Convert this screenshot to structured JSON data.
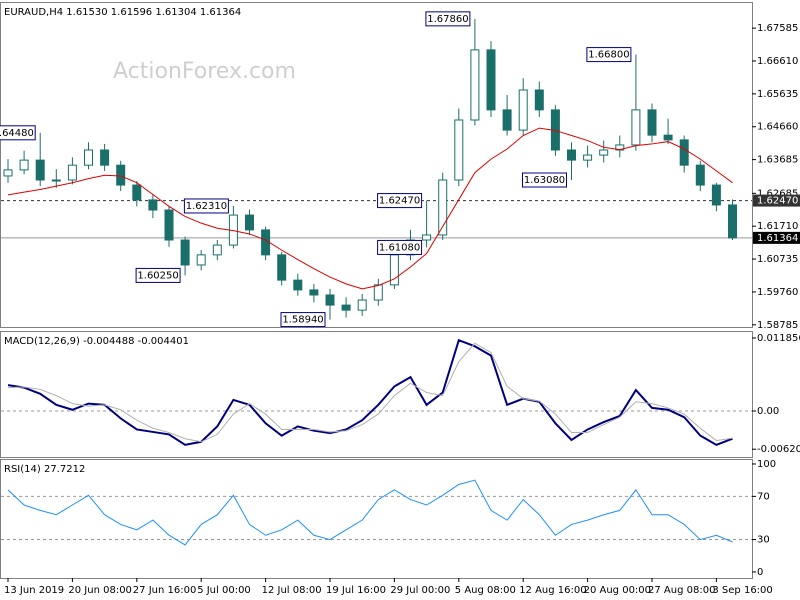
{
  "chart_data": [
    {
      "type": "candlestick",
      "title": "EURAUD,H4  1.61530 1.61596 1.61304 1.61364",
      "watermark": "ActionForex.com",
      "color": "#1b6f6a",
      "categories": [
        "13 Jun 2019",
        null,
        null,
        null,
        "20 Jun 08:00",
        null,
        null,
        null,
        "27 Jun 16:00",
        null,
        null,
        null,
        "5 Jul 00:00",
        null,
        null,
        null,
        "12 Jul 08:00",
        null,
        null,
        null,
        "19 Jul 16:00",
        null,
        null,
        null,
        "29 Jul 00:00",
        null,
        null,
        null,
        "5 Aug 08:00",
        null,
        null,
        null,
        "12 Aug 16:00",
        null,
        null,
        null,
        "20 Aug 00:00",
        null,
        null,
        null,
        "27 Aug 08:00",
        null,
        null,
        null,
        "3 Sep 16:00",
        null
      ],
      "open": [
        1.632,
        1.6338,
        1.6367,
        1.6308,
        1.6308,
        1.6352,
        1.6397,
        1.6352,
        1.6293,
        1.6249,
        1.6219,
        1.613,
        1.6056,
        1.6086,
        1.6115,
        1.6204,
        1.616,
        1.6086,
        1.6011,
        1.5982,
        1.5967,
        1.5937,
        1.5922,
        1.5952,
        1.5997,
        1.6086,
        1.613,
        1.6145,
        1.6308,
        1.6486,
        1.6694,
        1.6516,
        1.6456,
        1.6575,
        1.6516,
        1.6397,
        1.6367,
        1.6382,
        1.6397,
        1.6412,
        1.6516,
        1.6441,
        1.6427,
        1.6352,
        1.6293,
        1.6234
      ],
      "high": [
        1.637,
        1.6395,
        1.6448,
        1.634,
        1.6375,
        1.642,
        1.6415,
        1.6365,
        1.6305,
        1.6265,
        1.623,
        1.614,
        1.61,
        1.613,
        1.6231,
        1.622,
        1.617,
        1.6095,
        1.603,
        1.6,
        1.5985,
        1.596,
        1.597,
        1.6015,
        1.6105,
        1.616,
        1.6247,
        1.633,
        1.652,
        1.6786,
        1.672,
        1.656,
        1.661,
        1.66,
        1.653,
        1.642,
        1.641,
        1.6425,
        1.644,
        1.668,
        1.6535,
        1.649,
        1.644,
        1.6365,
        1.63,
        1.625
      ],
      "low": [
        1.63,
        1.6325,
        1.629,
        1.6285,
        1.6295,
        1.634,
        1.6335,
        1.6275,
        1.623,
        1.6195,
        1.611,
        1.6025,
        1.604,
        1.607,
        1.6105,
        1.6145,
        1.607,
        1.5995,
        1.5965,
        1.5945,
        1.5894,
        1.59,
        1.5905,
        1.5935,
        1.5985,
        1.607,
        1.6108,
        1.613,
        1.629,
        1.647,
        1.6495,
        1.644,
        1.644,
        1.6495,
        1.638,
        1.6308,
        1.6345,
        1.636,
        1.6375,
        1.6395,
        1.642,
        1.6415,
        1.633,
        1.6275,
        1.6215,
        1.613
      ],
      "close": [
        1.6338,
        1.6367,
        1.6308,
        1.6308,
        1.6352,
        1.6397,
        1.6352,
        1.6293,
        1.6249,
        1.6219,
        1.613,
        1.6056,
        1.6086,
        1.6115,
        1.6204,
        1.616,
        1.6086,
        1.6011,
        1.5982,
        1.5967,
        1.5937,
        1.5922,
        1.5952,
        1.5997,
        1.6086,
        1.613,
        1.6145,
        1.6308,
        1.6486,
        1.6694,
        1.6516,
        1.6456,
        1.6575,
        1.6516,
        1.6397,
        1.6367,
        1.6382,
        1.6397,
        1.6412,
        1.6516,
        1.6441,
        1.6427,
        1.6352,
        1.6293,
        1.6234,
        1.61364
      ],
      "overlay": {
        "color": "#e00000",
        "values": [
          1.6264,
          1.6272,
          1.628,
          1.629,
          1.63,
          1.6312,
          1.6322,
          1.632,
          1.63,
          1.6265,
          1.623,
          1.62,
          1.618,
          1.6165,
          1.6158,
          1.6148,
          1.613,
          1.61,
          1.6072,
          1.6045,
          1.602,
          1.6,
          1.5985,
          1.5995,
          1.6015,
          1.605,
          1.609,
          1.617,
          1.625,
          1.633,
          1.637,
          1.64,
          1.644,
          1.6462,
          1.6455,
          1.644,
          1.6425,
          1.6405,
          1.6398,
          1.641,
          1.6415,
          1.6422,
          1.64,
          1.637,
          1.6335,
          1.63
        ]
      },
      "annotations": [
        {
          "value": 1.6786,
          "label": "1.67860"
        },
        {
          "value": 1.668,
          "label": "1.66800"
        },
        {
          "value": 1.6448,
          "label": "1.64480"
        },
        {
          "value": 1.6308,
          "label": "1.63080"
        },
        {
          "value": 1.6231,
          "label": "1.62310"
        },
        {
          "value": 1.6247,
          "label": "1.62470"
        },
        {
          "value": 1.6108,
          "label": "1.61080"
        },
        {
          "value": 1.6025,
          "label": "1.60250"
        },
        {
          "value": 1.5894,
          "label": "1.58940"
        }
      ],
      "hlines": [
        {
          "value": 1.6247,
          "label": "1.62470",
          "style": "dashed"
        },
        {
          "value": 1.61364,
          "label": "1.61364",
          "style": "solid"
        }
      ],
      "ylim": [
        1.5872,
        1.6836
      ],
      "yticks": [
        1.67585,
        {
          "value": 1.6661,
          "label": "1.66610"
        },
        1.65635,
        {
          "value": 1.6466,
          "label": "1.64660"
        },
        1.63685,
        1.62685,
        {
          "value": 1.6171,
          "label": "1.61710"
        },
        1.60735,
        {
          "value": 1.5976,
          "label": "1.59760"
        },
        1.58785
      ]
    },
    {
      "type": "line",
      "title": "MACD(12,26,9) -0.004488 -0.004401",
      "series": [
        {
          "color": "#000080",
          "values": [
            0.0042,
            0.0038,
            0.0028,
            0.001,
            0.0002,
            0.0012,
            0.001,
            -0.0012,
            -0.003,
            -0.0034,
            -0.0038,
            -0.0055,
            -0.005,
            -0.0025,
            0.0018,
            0.001,
            -0.002,
            -0.004,
            -0.0025,
            -0.0032,
            -0.0036,
            -0.003,
            -0.0015,
            0.001,
            0.004,
            0.0055,
            0.001,
            0.003,
            0.0115,
            0.0105,
            0.009,
            0.001,
            0.002,
            0.0015,
            -0.002,
            -0.0047,
            -0.003,
            -0.0018,
            -0.0008,
            0.0034,
            0.0005,
            0.0002,
            -0.001,
            -0.004,
            -0.0055,
            -0.004488
          ]
        },
        {
          "color": "#b0b0b0",
          "values": [
            0.0038,
            0.0039,
            0.0035,
            0.0025,
            0.0012,
            0.0008,
            0.001,
            0.0002,
            -0.0015,
            -0.0028,
            -0.0035,
            -0.0045,
            -0.005,
            -0.0038,
            -0.0005,
            0.0012,
            -0.0005,
            -0.003,
            -0.003,
            -0.003,
            -0.0034,
            -0.0032,
            -0.0022,
            -0.0005,
            0.0025,
            0.0045,
            0.003,
            0.0025,
            0.008,
            0.011,
            0.0095,
            0.004,
            0.002,
            0.0016,
            -0.0005,
            -0.0035,
            -0.0035,
            -0.0022,
            -0.001,
            0.0015,
            0.0012,
            0.0005,
            -0.0005,
            -0.0028,
            -0.0048,
            -0.004401
          ]
        }
      ],
      "levels": [
        0
      ],
      "ylim": [
        -0.00747,
        0.01299
      ],
      "yticks": [
        0.011856,
        {
          "value": 0,
          "label": "0.00"
        },
        -0.006206
      ]
    },
    {
      "type": "line",
      "title": "RSI(14) 27.7212",
      "series": [
        {
          "color": "#1e90ff",
          "values": [
            76,
            62,
            57,
            53,
            62,
            71,
            53,
            44,
            39,
            48,
            34,
            25,
            44,
            53,
            71,
            44,
            34,
            39,
            48,
            34,
            30,
            39,
            48,
            67,
            76,
            67,
            62,
            71,
            81,
            85,
            57,
            48,
            67,
            53,
            34,
            44,
            48,
            53,
            57,
            76,
            53,
            53,
            44,
            30,
            34,
            27.7212
          ]
        }
      ],
      "levels": [
        70,
        30
      ],
      "ylim": [
        -5.6,
        104.6
      ],
      "yticks": [
        100,
        70,
        30,
        0
      ]
    }
  ]
}
